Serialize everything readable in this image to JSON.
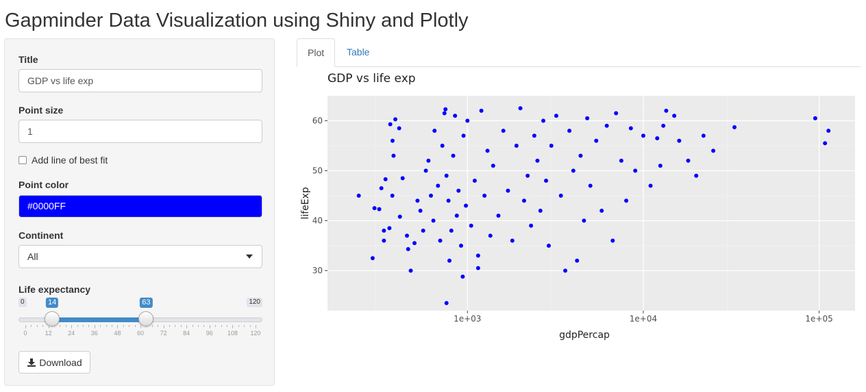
{
  "page": {
    "title": "Gapminder Data Visualization using Shiny and Plotly"
  },
  "sidebar": {
    "title_label": "Title",
    "title_value": "GDP vs life exp",
    "point_size_label": "Point size",
    "point_size_value": "1",
    "fit_label": "Add line of best fit",
    "fit_checked": false,
    "color_label": "Point color",
    "color_value": "#0000FF",
    "continent_label": "Continent",
    "continent_value": "All",
    "life_label": "Life expectancy",
    "life_min": "0",
    "life_max": "120",
    "life_low": "14",
    "life_high": "63",
    "life_ticks": [
      "0",
      "12",
      "24",
      "36",
      "48",
      "60",
      "72",
      "84",
      "96",
      "108",
      "120"
    ],
    "download_label": "Download",
    "colors": {
      "point": "#0000FF",
      "slider_accent": "#428bca"
    },
    "icons": {
      "download": "download-icon",
      "select": "caret-down-icon"
    }
  },
  "tabs": [
    {
      "label": "Plot",
      "active": true
    },
    {
      "label": "Table",
      "active": false
    }
  ],
  "chart_data": {
    "type": "scatter",
    "title": "GDP vs life exp",
    "xlabel": "gdpPercap",
    "ylabel": "lifeExp",
    "x_scale": "log",
    "xlim": [
      160,
      160000
    ],
    "ylim": [
      22,
      65
    ],
    "x_ticks": [
      "1e+03",
      "1e+04",
      "1e+05"
    ],
    "y_ticks": [
      30,
      40,
      50,
      60
    ],
    "grid": true,
    "point_color": "#0000FF",
    "points": [
      [
        241,
        45.0
      ],
      [
        289,
        32.5
      ],
      [
        296,
        42.5
      ],
      [
        315,
        42.3
      ],
      [
        335,
        38.0
      ],
      [
        335,
        36.0
      ],
      [
        360,
        38.5
      ],
      [
        342,
        48.3
      ],
      [
        324,
        46.5
      ],
      [
        364,
        59.3
      ],
      [
        374,
        45.0
      ],
      [
        375,
        56.0
      ],
      [
        380,
        53.0
      ],
      [
        389,
        60.3
      ],
      [
        409,
        58.5
      ],
      [
        413,
        40.8
      ],
      [
        428,
        48.5
      ],
      [
        453,
        37.0
      ],
      [
        460,
        34.3
      ],
      [
        476,
        30.0
      ],
      [
        500,
        35.5
      ],
      [
        520,
        44.0
      ],
      [
        540,
        42.0
      ],
      [
        560,
        38.0
      ],
      [
        580,
        50.0
      ],
      [
        600,
        52.0
      ],
      [
        620,
        45.0
      ],
      [
        640,
        40.0
      ],
      [
        650,
        58.0
      ],
      [
        680,
        47.0
      ],
      [
        700,
        36.0
      ],
      [
        720,
        55.0
      ],
      [
        740,
        61.5
      ],
      [
        750,
        62.3
      ],
      [
        760,
        49.0
      ],
      [
        780,
        44.0
      ],
      [
        790,
        32.0
      ],
      [
        810,
        38.0
      ],
      [
        830,
        53.0
      ],
      [
        850,
        61.0
      ],
      [
        870,
        41.0
      ],
      [
        890,
        46.0
      ],
      [
        920,
        35.0
      ],
      [
        950,
        57.0
      ],
      [
        980,
        43.0
      ],
      [
        1000,
        60.0
      ],
      [
        1050,
        39.0
      ],
      [
        1100,
        48.0
      ],
      [
        1150,
        33.0
      ],
      [
        1200,
        62.0
      ],
      [
        1250,
        45.0
      ],
      [
        1300,
        54.0
      ],
      [
        1350,
        37.0
      ],
      [
        1400,
        51.0
      ],
      [
        1500,
        41.0
      ],
      [
        1600,
        58.0
      ],
      [
        1700,
        46.0
      ],
      [
        1800,
        36.0
      ],
      [
        1900,
        55.0
      ],
      [
        2000,
        62.5
      ],
      [
        2100,
        44.0
      ],
      [
        2200,
        49.0
      ],
      [
        2300,
        39.0
      ],
      [
        2400,
        57.0
      ],
      [
        2500,
        52.0
      ],
      [
        2600,
        42.0
      ],
      [
        2700,
        60.0
      ],
      [
        2800,
        48.0
      ],
      [
        2900,
        35.0
      ],
      [
        3000,
        55.0
      ],
      [
        3200,
        61.0
      ],
      [
        3400,
        45.0
      ],
      [
        3600,
        30.0
      ],
      [
        3800,
        58.0
      ],
      [
        4000,
        50.0
      ],
      [
        4200,
        32.0
      ],
      [
        4400,
        53.0
      ],
      [
        4600,
        40.0
      ],
      [
        4800,
        60.5
      ],
      [
        5000,
        47.0
      ],
      [
        5400,
        56.0
      ],
      [
        5800,
        42.0
      ],
      [
        6200,
        59.0
      ],
      [
        6700,
        36.0
      ],
      [
        7000,
        61.5
      ],
      [
        7500,
        52.0
      ],
      [
        8000,
        44.0
      ],
      [
        8500,
        58.5
      ],
      [
        9000,
        50.0
      ],
      [
        10000,
        57.0
      ],
      [
        11000,
        47.0
      ],
      [
        12000,
        56.5
      ],
      [
        12500,
        51.0
      ],
      [
        13000,
        59.0
      ],
      [
        13500,
        62.0
      ],
      [
        15000,
        61.0
      ],
      [
        16000,
        56.0
      ],
      [
        18000,
        52.0
      ],
      [
        20000,
        49.0
      ],
      [
        22000,
        57.0
      ],
      [
        25000,
        54.0
      ],
      [
        33000,
        58.7
      ],
      [
        95000,
        60.5
      ],
      [
        108000,
        55.5
      ],
      [
        113000,
        58.0
      ],
      [
        940,
        28.8
      ],
      [
        760,
        23.5
      ],
      [
        1150,
        30.5
      ]
    ]
  }
}
